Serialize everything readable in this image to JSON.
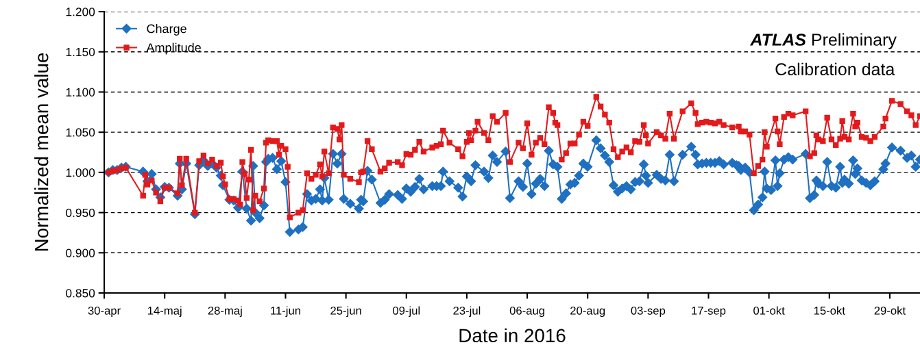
{
  "chart_data": {
    "type": "line",
    "xlabel": "Date in 2016",
    "ylabel": "Normalized mean value",
    "annotations": [
      "ATLAS",
      "Preliminary",
      "Calibration data"
    ],
    "xlim": [
      "2016-04-30",
      "2016-11-05"
    ],
    "xticks": [
      {
        "value": "2016-04-30",
        "label": "30-apr"
      },
      {
        "value": "2016-05-14",
        "label": "14-maj"
      },
      {
        "value": "2016-05-28",
        "label": "28-maj"
      },
      {
        "value": "2016-06-11",
        "label": "11-jun"
      },
      {
        "value": "2016-06-25",
        "label": "25-jun"
      },
      {
        "value": "2016-07-09",
        "label": "09-jul"
      },
      {
        "value": "2016-07-23",
        "label": "23-jul"
      },
      {
        "value": "2016-08-06",
        "label": "06-aug"
      },
      {
        "value": "2016-08-20",
        "label": "20-aug"
      },
      {
        "value": "2016-09-03",
        "label": "03-sep"
      },
      {
        "value": "2016-09-17",
        "label": "17-sep"
      },
      {
        "value": "2016-10-01",
        "label": "01-okt"
      },
      {
        "value": "2016-10-15",
        "label": "15-okt"
      },
      {
        "value": "2016-10-29",
        "label": "29-okt"
      }
    ],
    "ylim": [
      0.85,
      1.2
    ],
    "yticks": [
      {
        "value": 0.85,
        "label": "0.850"
      },
      {
        "value": 0.9,
        "label": "0.900"
      },
      {
        "value": 0.95,
        "label": "0.950"
      },
      {
        "value": 1.0,
        "label": "1.000"
      },
      {
        "value": 1.05,
        "label": "1.050"
      },
      {
        "value": 1.1,
        "label": "1.100"
      },
      {
        "value": 1.15,
        "label": "1.150"
      },
      {
        "value": 1.2,
        "label": "1.200"
      }
    ],
    "grid": "y",
    "legend": "top left",
    "line_style": "solid",
    "series": [
      {
        "name": "Charge",
        "color": "#1f70c1",
        "marker": "diamond",
        "x": [
          "2016-05-01",
          "2016-05-02",
          "2016-05-03",
          "2016-05-04",
          "2016-05-05",
          "2016-05-09",
          "2016-05-10",
          "2016-05-11",
          "2016-05-12",
          "2016-05-13",
          "2016-05-14",
          "2016-05-15",
          "2016-05-17",
          "2016-05-17T12:00",
          "2016-05-18",
          "2016-05-19",
          "2016-05-21",
          "2016-05-22",
          "2016-05-23",
          "2016-05-24",
          "2016-05-25",
          "2016-05-26",
          "2016-05-27",
          "2016-05-27T12:00",
          "2016-05-29",
          "2016-05-30",
          "2016-05-31",
          "2016-06-01",
          "2016-06-02",
          "2016-06-03",
          "2016-06-03T12:00",
          "2016-06-04",
          "2016-06-05",
          "2016-06-06",
          "2016-06-06T12:00",
          "2016-06-07",
          "2016-06-08",
          "2016-06-09",
          "2016-06-10",
          "2016-06-11",
          "2016-06-12",
          "2016-06-14",
          "2016-06-15",
          "2016-06-16",
          "2016-06-17",
          "2016-06-18",
          "2016-06-19",
          "2016-06-19T12:00",
          "2016-06-20",
          "2016-06-21",
          "2016-06-22",
          "2016-06-23",
          "2016-06-24",
          "2016-06-24T12:00",
          "2016-06-26",
          "2016-06-28",
          "2016-06-28T12:00",
          "2016-06-29",
          "2016-06-30",
          "2016-07-01",
          "2016-07-03",
          "2016-07-04",
          "2016-07-05",
          "2016-07-07",
          "2016-07-08",
          "2016-07-09",
          "2016-07-10",
          "2016-07-11",
          "2016-07-12",
          "2016-07-13",
          "2016-07-15",
          "2016-07-16",
          "2016-07-17",
          "2016-07-17T12:00",
          "2016-07-19",
          "2016-07-21",
          "2016-07-22",
          "2016-07-23",
          "2016-07-24",
          "2016-07-25",
          "2016-07-27",
          "2016-07-28",
          "2016-07-29",
          "2016-07-30",
          "2016-08-01",
          "2016-08-02",
          "2016-08-04",
          "2016-08-05",
          "2016-08-06",
          "2016-08-07",
          "2016-08-08",
          "2016-08-09",
          "2016-08-10",
          "2016-08-11",
          "2016-08-12",
          "2016-08-13",
          "2016-08-14",
          "2016-08-15",
          "2016-08-16",
          "2016-08-17",
          "2016-08-18",
          "2016-08-19",
          "2016-08-20",
          "2016-08-22",
          "2016-08-23",
          "2016-08-24",
          "2016-08-25",
          "2016-08-26",
          "2016-08-27",
          "2016-08-28",
          "2016-08-29",
          "2016-08-30",
          "2016-08-31",
          "2016-09-01",
          "2016-09-02",
          "2016-09-02T12:00",
          "2016-09-03",
          "2016-09-05",
          "2016-09-06",
          "2016-09-07",
          "2016-09-08",
          "2016-09-09",
          "2016-09-11",
          "2016-09-13",
          "2016-09-14",
          "2016-09-14T12:00",
          "2016-09-15T12:00",
          "2016-09-16T12:00",
          "2016-09-17T12:00",
          "2016-09-18T12:00",
          "2016-09-19T12:00",
          "2016-09-20T12:00",
          "2016-09-22T12:00",
          "2016-09-23T12:00",
          "2016-09-24",
          "2016-09-24T12:00",
          "2016-09-25T12:00",
          "2016-09-26T12:00",
          "2016-09-27T12:00",
          "2016-09-28T12:00",
          "2016-09-29T12:00",
          "2016-09-30",
          "2016-09-30T12:00",
          "2016-10-01T12:00",
          "2016-10-02T12:00",
          "2016-10-03",
          "2016-10-03T12:00",
          "2016-10-04T12:00",
          "2016-10-05T12:00",
          "2016-10-06T12:00",
          "2016-10-09T12:00",
          "2016-10-10T12:00",
          "2016-10-11T12:00",
          "2016-10-12",
          "2016-10-12T12:00",
          "2016-10-13T12:00",
          "2016-10-14T12:00",
          "2016-10-15T12:00",
          "2016-10-16T12:00",
          "2016-10-17T12:00",
          "2016-10-18",
          "2016-10-18T12:00",
          "2016-10-19T12:00",
          "2016-10-20T12:00",
          "2016-10-21",
          "2016-10-21T12:00",
          "2016-10-22T12:00",
          "2016-10-23T12:00",
          "2016-10-24T12:00",
          "2016-10-25T12:00",
          "2016-10-27T12:00",
          "2016-10-28",
          "2016-10-29T12:00",
          "2016-10-31T12:00",
          "2016-11-02",
          "2016-11-03",
          "2016-11-04",
          "2016-11-05"
        ],
        "values": [
          1.0,
          1.003,
          1.003,
          1.006,
          1.007,
          1.001,
          0.989,
          0.998,
          0.979,
          0.969,
          0.982,
          0.981,
          0.971,
          1.011,
          0.979,
          1.011,
          0.948,
          1.009,
          1.015,
          1.008,
          1.011,
          1.006,
          0.996,
          0.984,
          0.966,
          0.965,
          0.956,
          1.001,
          0.955,
          0.94,
          1.008,
          0.95,
          0.943,
          0.959,
          1.013,
          1.017,
          1.018,
          1.004,
          1.014,
          0.988,
          0.926,
          0.929,
          0.932,
          0.973,
          0.965,
          0.967,
          0.979,
          0.965,
          0.993,
          0.966,
          1.023,
          1.011,
          1.023,
          0.967,
          0.961,
          0.955,
          0.966,
          0.964,
          1.002,
          0.991,
          0.962,
          0.966,
          0.973,
          0.972,
          0.967,
          0.98,
          0.976,
          0.982,
          0.992,
          0.979,
          0.983,
          0.983,
          0.983,
          1.001,
          0.989,
          0.981,
          0.97,
          0.995,
          0.989,
          1.009,
          1.001,
          0.993,
          1.021,
          1.013,
          1.026,
          0.968,
          0.989,
          0.982,
          1.011,
          0.973,
          0.986,
          0.992,
          0.983,
          1.027,
          1.01,
          1.007,
          0.967,
          0.974,
          0.985,
          0.987,
          0.996,
          1.011,
          1.007,
          1.04,
          1.03,
          1.021,
          1.013,
          0.984,
          0.976,
          0.98,
          0.983,
          0.979,
          0.988,
          0.989,
          1.01,
          0.996,
          0.987,
          0.997,
          0.992,
          0.99,
          1.022,
          0.989,
          1.022,
          1.032,
          1.022,
          1.01,
          1.011,
          1.012,
          1.012,
          1.012,
          1.014,
          1.01,
          1.012,
          1.009,
          1.008,
          1.003,
          1.006,
          1.0,
          0.953,
          0.96,
          0.969,
          1.001,
          0.98,
          0.978,
          1.015,
          0.983,
          0.999,
          1.016,
          1.019,
          1.016,
          1.023,
          0.968,
          0.972,
          0.99,
          0.986,
          0.983,
          1.013,
          0.983,
          0.981,
          1.007,
          0.987,
          0.991,
          0.986,
          1.015,
          0.998,
          1.005,
          0.99,
          0.987,
          0.984,
          0.989,
          1.004,
          1.011,
          1.031,
          1.027,
          1.018,
          1.021,
          1.007,
          1.016
        ]
      },
      {
        "name": "Amplitude",
        "color": "#e31a1c",
        "marker": "square",
        "x": [
          "2016-05-01",
          "2016-05-02",
          "2016-05-03",
          "2016-05-04",
          "2016-05-05",
          "2016-05-09",
          "2016-05-09T12:00",
          "2016-05-10",
          "2016-05-11",
          "2016-05-12",
          "2016-05-13",
          "2016-05-14",
          "2016-05-15",
          "2016-05-17",
          "2016-05-17T12:00",
          "2016-05-18",
          "2016-05-19",
          "2016-05-21",
          "2016-05-22",
          "2016-05-23",
          "2016-05-24",
          "2016-05-25",
          "2016-05-26",
          "2016-05-27",
          "2016-05-27T12:00",
          "2016-05-28",
          "2016-05-29",
          "2016-05-30",
          "2016-05-31",
          "2016-05-31T12:00",
          "2016-06-01",
          "2016-06-01T12:00",
          "2016-06-02",
          "2016-06-02T12:00",
          "2016-06-03",
          "2016-06-03T12:00",
          "2016-06-04",
          "2016-06-05",
          "2016-06-06",
          "2016-06-06T12:00",
          "2016-06-07",
          "2016-06-08",
          "2016-06-09",
          "2016-06-09T12:00",
          "2016-06-10",
          "2016-06-11",
          "2016-06-11T12:00",
          "2016-06-12",
          "2016-06-14",
          "2016-06-15",
          "2016-06-16",
          "2016-06-17",
          "2016-06-18",
          "2016-06-19",
          "2016-06-19T12:00",
          "2016-06-20",
          "2016-06-21",
          "2016-06-22",
          "2016-06-23",
          "2016-06-23T12:00",
          "2016-06-24",
          "2016-06-24T12:00",
          "2016-06-26",
          "2016-06-28",
          "2016-06-28T12:00",
          "2016-06-29",
          "2016-06-30",
          "2016-07-01",
          "2016-07-03",
          "2016-07-04",
          "2016-07-05",
          "2016-07-07",
          "2016-07-08",
          "2016-07-09",
          "2016-07-10",
          "2016-07-11",
          "2016-07-12",
          "2016-07-13",
          "2016-07-15",
          "2016-07-16",
          "2016-07-17",
          "2016-07-17T12:00",
          "2016-07-19",
          "2016-07-21",
          "2016-07-22",
          "2016-07-23",
          "2016-07-23T12:00",
          "2016-07-24",
          "2016-07-25",
          "2016-07-25T12:00",
          "2016-07-27",
          "2016-07-28",
          "2016-07-29",
          "2016-07-30",
          "2016-08-01",
          "2016-08-02",
          "2016-08-04",
          "2016-08-05",
          "2016-08-06",
          "2016-08-07",
          "2016-08-08",
          "2016-08-09",
          "2016-08-10",
          "2016-08-11",
          "2016-08-12",
          "2016-08-12T12:00",
          "2016-08-13",
          "2016-08-14",
          "2016-08-15",
          "2016-08-16",
          "2016-08-17",
          "2016-08-18",
          "2016-08-19",
          "2016-08-20",
          "2016-08-22",
          "2016-08-23",
          "2016-08-24",
          "2016-08-25",
          "2016-08-26",
          "2016-08-27",
          "2016-08-28",
          "2016-08-29",
          "2016-08-30",
          "2016-08-31",
          "2016-09-01",
          "2016-09-02",
          "2016-09-02T12:00",
          "2016-09-03",
          "2016-09-05",
          "2016-09-06",
          "2016-09-07",
          "2016-09-08",
          "2016-09-09",
          "2016-09-11",
          "2016-09-13",
          "2016-09-14",
          "2016-09-14T12:00",
          "2016-09-15T12:00",
          "2016-09-16T12:00",
          "2016-09-17T12:00",
          "2016-09-18T12:00",
          "2016-09-19T12:00",
          "2016-09-20T12:00",
          "2016-09-22T12:00",
          "2016-09-24",
          "2016-09-24T12:00",
          "2016-09-25T12:00",
          "2016-09-26T12:00",
          "2016-09-27T12:00",
          "2016-09-28T12:00",
          "2016-09-29T12:00",
          "2016-09-30",
          "2016-09-30T12:00",
          "2016-10-02T12:00",
          "2016-10-03",
          "2016-10-03T12:00",
          "2016-10-04T12:00",
          "2016-10-05T12:00",
          "2016-10-06T12:00",
          "2016-10-09T12:00",
          "2016-10-10T12:00",
          "2016-10-11T12:00",
          "2016-10-12",
          "2016-10-12T12:00",
          "2016-10-13T12:00",
          "2016-10-14T12:00",
          "2016-10-15T12:00",
          "2016-10-16T12:00",
          "2016-10-17T12:00",
          "2016-10-18",
          "2016-10-18T12:00",
          "2016-10-19T12:00",
          "2016-10-20T12:00",
          "2016-10-21",
          "2016-10-21T12:00",
          "2016-10-22T12:00",
          "2016-10-23T12:00",
          "2016-10-24T12:00",
          "2016-10-25T12:00",
          "2016-10-27T12:00",
          "2016-10-28",
          "2016-10-29T12:00",
          "2016-10-31T12:00",
          "2016-11-02",
          "2016-11-03",
          "2016-11-04",
          "2016-11-05"
        ],
        "values": [
          1.0,
          1.002,
          1.003,
          1.005,
          1.006,
          0.971,
          0.997,
          0.985,
          0.99,
          0.975,
          0.964,
          0.981,
          0.981,
          0.974,
          1.017,
          0.984,
          1.017,
          0.95,
          1.014,
          1.021,
          1.011,
          1.016,
          1.008,
          1.012,
          0.995,
          0.985,
          0.967,
          0.967,
          0.965,
          0.96,
          1.013,
          0.998,
          0.968,
          0.991,
          1.028,
          0.953,
          0.971,
          0.964,
          0.98,
          1.037,
          1.04,
          1.039,
          1.039,
          1.022,
          1.033,
          1.029,
          1.007,
          0.944,
          0.95,
          0.953,
          0.999,
          0.992,
          0.997,
          1.01,
          0.995,
          1.026,
          0.999,
          1.056,
          1.054,
          1.041,
          1.059,
          0.997,
          0.992,
          0.988,
          1.0,
          1.001,
          1.039,
          1.029,
          1.001,
          1.005,
          1.012,
          1.013,
          1.009,
          1.023,
          1.022,
          1.028,
          1.038,
          1.026,
          1.031,
          1.033,
          1.035,
          1.052,
          1.037,
          1.029,
          1.02,
          1.038,
          1.049,
          1.04,
          1.052,
          1.063,
          1.049,
          1.04,
          1.07,
          1.063,
          1.074,
          1.013,
          1.037,
          1.03,
          1.061,
          1.022,
          1.037,
          1.043,
          1.035,
          1.081,
          1.074,
          1.062,
          1.059,
          1.016,
          1.024,
          1.036,
          1.036,
          1.047,
          1.063,
          1.058,
          1.094,
          1.082,
          1.072,
          1.062,
          1.029,
          1.019,
          1.026,
          1.031,
          1.025,
          1.039,
          1.038,
          1.059,
          1.046,
          1.036,
          1.05,
          1.046,
          1.042,
          1.073,
          1.042,
          1.076,
          1.086,
          1.074,
          1.06,
          1.062,
          1.063,
          1.062,
          1.061,
          1.063,
          1.059,
          1.056,
          1.057,
          1.051,
          1.051,
          1.047,
          0.999,
          1.008,
          1.016,
          1.05,
          1.032,
          1.067,
          1.051,
          1.035,
          1.069,
          1.073,
          1.071,
          1.076,
          1.02,
          1.024,
          1.046,
          1.041,
          1.039,
          1.068,
          1.041,
          1.034,
          1.042,
          1.064,
          1.044,
          1.041,
          1.073,
          1.057,
          1.062,
          1.044,
          1.043,
          1.039,
          1.044,
          1.057,
          1.067,
          1.089,
          1.085,
          1.076,
          1.071,
          1.059,
          1.07
        ]
      }
    ]
  }
}
